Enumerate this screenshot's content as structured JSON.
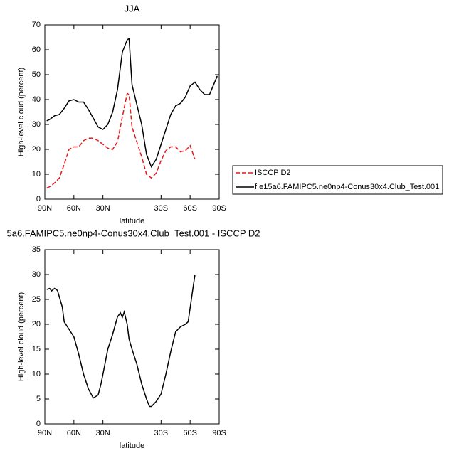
{
  "chart_data": [
    {
      "type": "line",
      "title": "JJA",
      "xlabel": "latitude",
      "ylabel": "High-level cloud (percent)",
      "x": [
        88,
        85,
        80,
        75,
        70,
        65,
        60,
        55,
        50,
        45,
        40,
        35,
        30,
        25,
        20,
        15,
        10,
        5,
        3,
        0,
        -5,
        -10,
        -15,
        -20,
        -25,
        -30,
        -35,
        -40,
        -45,
        -50,
        -55,
        -60,
        -65,
        -70,
        -75,
        -80,
        -88
      ],
      "series": [
        {
          "name": "ISCCP D2",
          "color": "#e41a1c",
          "linestyle": "dashed",
          "values": [
            4.5,
            5,
            6.5,
            8.5,
            14,
            20,
            21,
            21,
            23.5,
            24.5,
            24.5,
            23.5,
            22,
            20.5,
            20,
            23,
            33,
            42.5,
            42,
            29,
            23,
            17,
            10,
            8.5,
            10.5,
            15.5,
            19.5,
            21,
            21,
            19,
            19.5,
            21.5,
            16,
            null,
            null,
            null,
            null
          ]
        },
        {
          "name": "f.e15a6.FAMIPC5.ne0np4-Conus30x4.Club_Test.001",
          "color": "#000000",
          "linestyle": "solid",
          "values": [
            31.5,
            32,
            33.5,
            34,
            36.5,
            39.5,
            40,
            39,
            39,
            36,
            32.5,
            29,
            28,
            30,
            35,
            44,
            59,
            64,
            64.5,
            46,
            38,
            30,
            18,
            13,
            16,
            22,
            28,
            34,
            37.5,
            38.5,
            41,
            45.5,
            47,
            44,
            42,
            42,
            49.5
          ]
        }
      ],
      "xlim": [
        90,
        -90
      ],
      "xticks": [
        {
          "value": 90,
          "label": "90N"
        },
        {
          "value": 60,
          "label": "60N"
        },
        {
          "value": 30,
          "label": "30N"
        },
        {
          "value": -30,
          "label": "30S"
        },
        {
          "value": -60,
          "label": "60S"
        },
        {
          "value": -90,
          "label": "90S"
        }
      ],
      "ylim": [
        0,
        70
      ],
      "yticks": [
        0,
        10,
        20,
        30,
        40,
        50,
        60,
        70
      ],
      "legend": "right"
    },
    {
      "type": "line",
      "title": "5a6.FAMIPC5.ne0np4-Conus30x4.Club_Test.001 - ISCCP D2",
      "xlabel": "latitude",
      "ylabel": "High-level cloud (percent)",
      "x": [
        88,
        85,
        83,
        80,
        77,
        75,
        72,
        70,
        65,
        60,
        55,
        50,
        45,
        40,
        35,
        32,
        30,
        25,
        20,
        15,
        12,
        10,
        8,
        5,
        3,
        0,
        -5,
        -10,
        -15,
        -18,
        -20,
        -25,
        -30,
        -35,
        -40,
        -45,
        -50,
        -55,
        -58,
        -62,
        -65
      ],
      "series": [
        {
          "color": "#000000",
          "linestyle": "solid",
          "values": [
            27,
            27.2,
            26.7,
            27.2,
            26.8,
            25.5,
            23.5,
            20.5,
            19,
            17.5,
            14,
            10,
            7,
            5.2,
            5.8,
            8,
            10,
            15,
            18,
            21.5,
            22.3,
            21.4,
            22.5,
            20,
            17,
            15,
            12,
            8,
            5,
            3.5,
            3.5,
            4.5,
            6,
            10,
            14.5,
            18.5,
            19.5,
            20,
            20.5,
            26,
            30
          ]
        }
      ],
      "xlim": [
        90,
        -90
      ],
      "xticks": [
        {
          "value": 90,
          "label": "90N"
        },
        {
          "value": 60,
          "label": "60N"
        },
        {
          "value": 30,
          "label": "30N"
        },
        {
          "value": -30,
          "label": "30S"
        },
        {
          "value": -60,
          "label": "60S"
        },
        {
          "value": -90,
          "label": "90S"
        }
      ],
      "ylim": [
        0,
        35
      ],
      "yticks": [
        0,
        5,
        10,
        15,
        20,
        25,
        30,
        35
      ]
    }
  ]
}
